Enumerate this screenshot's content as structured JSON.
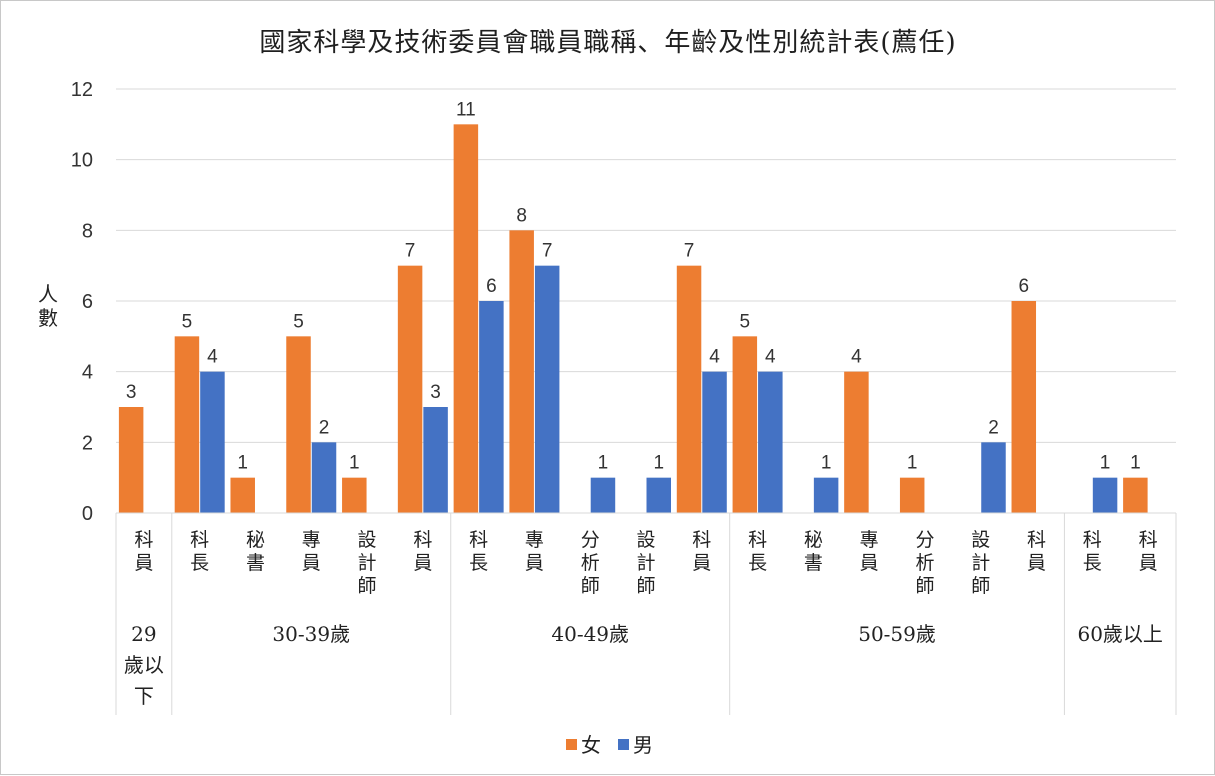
{
  "chart_data": {
    "type": "bar",
    "title": "國家科學及技術委員會職員職稱、年齡及性別統計表(薦任)",
    "ylabel": "人數",
    "xlabel": "",
    "ylim": [
      0,
      12
    ],
    "yticks": [
      0,
      2,
      4,
      6,
      8,
      10,
      12
    ],
    "grid": true,
    "legend_position": "bottom",
    "colors": {
      "女": "#ed7d31",
      "男": "#4472c4",
      "grid": "#d9d9d9"
    },
    "groups": [
      {
        "label": "29歲以下",
        "categories": [
          "科員"
        ]
      },
      {
        "label": "30-39歲",
        "categories": [
          "科長",
          "秘書",
          "專員",
          "設計師",
          "科員"
        ]
      },
      {
        "label": "40-49歲",
        "categories": [
          "科長",
          "專員",
          "分析師",
          "設計師",
          "科員"
        ]
      },
      {
        "label": "50-59歲",
        "categories": [
          "科長",
          "秘書",
          "專員",
          "分析師",
          "設計師",
          "科員"
        ]
      },
      {
        "label": "60歲以上",
        "categories": [
          "科長",
          "科員"
        ]
      }
    ],
    "categories": [
      "科員",
      "科長",
      "秘書",
      "專員",
      "設計師",
      "科員",
      "科長",
      "專員",
      "分析師",
      "設計師",
      "科員",
      "科長",
      "秘書",
      "專員",
      "分析師",
      "設計師",
      "科員",
      "科長",
      "科員"
    ],
    "series": [
      {
        "name": "女",
        "values": [
          3,
          5,
          1,
          5,
          1,
          7,
          11,
          8,
          null,
          null,
          7,
          5,
          null,
          4,
          1,
          null,
          6,
          null,
          1
        ]
      },
      {
        "name": "男",
        "values": [
          null,
          4,
          null,
          2,
          null,
          3,
          6,
          7,
          1,
          1,
          4,
          4,
          1,
          null,
          null,
          2,
          null,
          1,
          null
        ]
      }
    ]
  }
}
